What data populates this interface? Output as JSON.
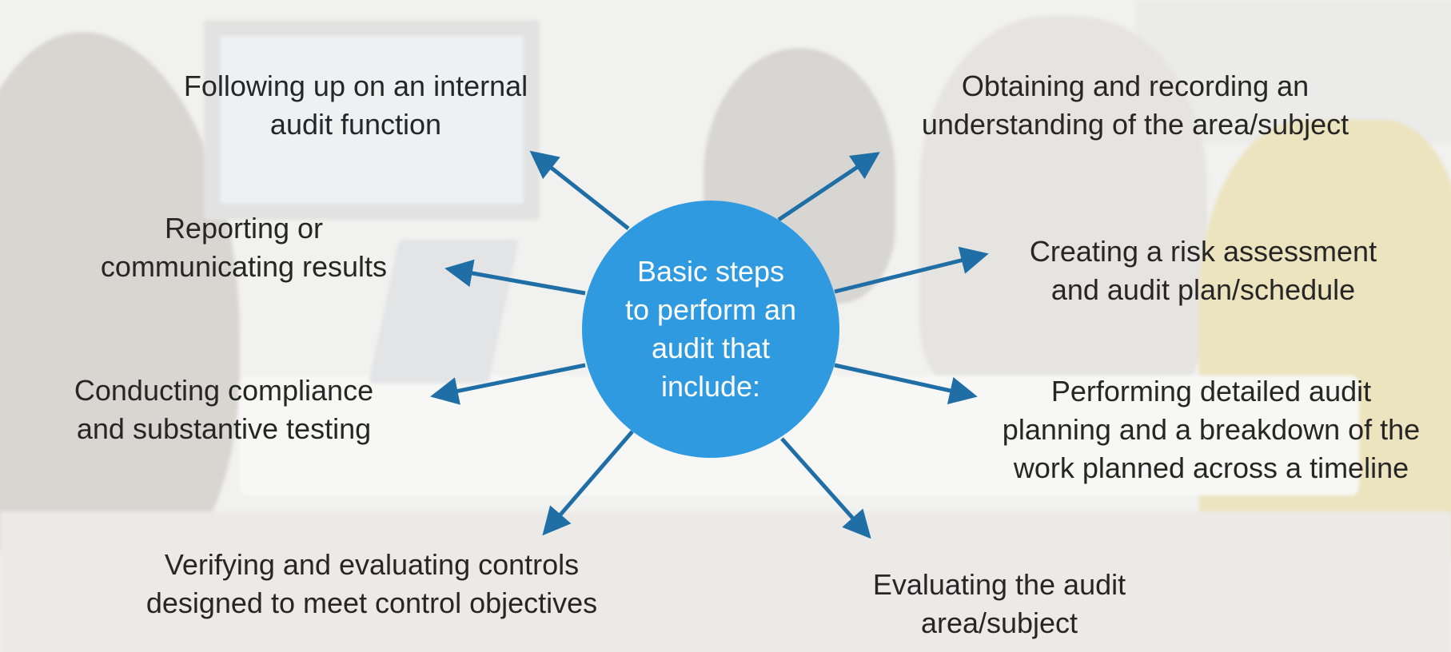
{
  "hub": {
    "label": "Basic steps\nto perform an\naudit that\ninclude:"
  },
  "steps": [
    {
      "label": "Following up on an internal\naudit function"
    },
    {
      "label": "Reporting or\ncommunicating results"
    },
    {
      "label": "Conducting compliance\nand substantive testing"
    },
    {
      "label": "Verifying and evaluating controls\ndesigned to meet control objectives"
    },
    {
      "label": "Obtaining and recording an\nunderstanding of the area/subject"
    },
    {
      "label": "Creating a risk assessment\nand audit plan/schedule"
    },
    {
      "label": "Performing detailed audit\nplanning and a breakdown of the\nwork planned across a timeline"
    },
    {
      "label": "Evaluating the audit\narea/subject"
    }
  ],
  "colors": {
    "hub": "#2f9ae0",
    "arrow": "#1f6fa6",
    "hub_text": "#ffffff",
    "step_text": "#262626"
  }
}
